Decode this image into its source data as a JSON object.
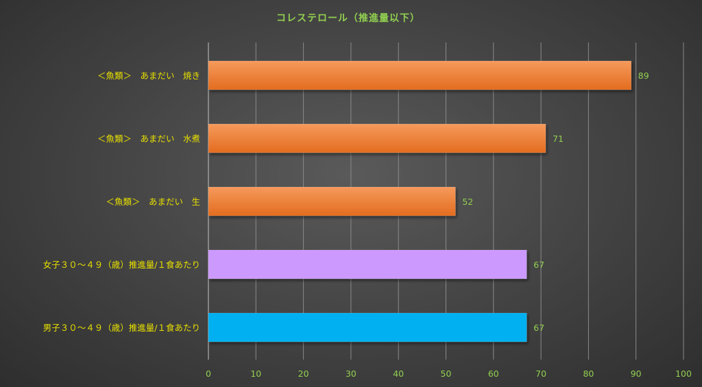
{
  "chart_data": {
    "type": "bar",
    "orientation": "horizontal",
    "title": "コレステロール（推進量以下）",
    "categories": [
      "＜魚類＞　あまだい　焼き",
      "＜魚類＞　あまだい　水煮",
      "＜魚類＞　あまだい　生",
      "女子３０～４９（歳）推進量/１食あたり",
      "男子３０～４９（歳）推進量/１食あたり"
    ],
    "values": [
      89,
      71,
      52,
      67,
      67
    ],
    "bar_colors": [
      "#ed7d31",
      "#ed7d31",
      "#ed7d31",
      "#cc99ff",
      "#00b0f0"
    ],
    "xlim": [
      0,
      100
    ],
    "x_ticks": [
      0,
      10,
      20,
      30,
      40,
      50,
      60,
      70,
      80,
      90,
      100
    ],
    "grid": true,
    "data_labels": true,
    "legend": "none"
  }
}
